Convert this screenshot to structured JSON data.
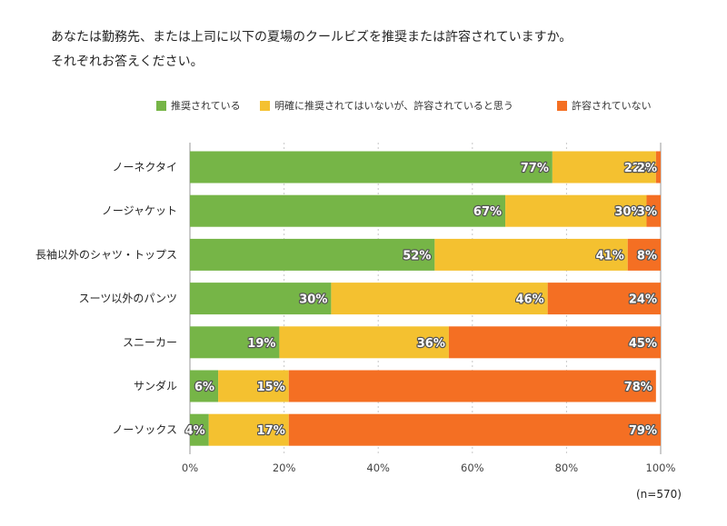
{
  "question": {
    "line1": "あなたは勤務先、または上司に以下の夏場のクールビズを推奨または許容されていますか。",
    "line2": "それぞれお答えください。"
  },
  "legend": [
    {
      "label": "推奨されている",
      "color": "#76B547"
    },
    {
      "label": "明確に推奨されてはいないが、許容されていると思う",
      "color": "#F4C130"
    },
    {
      "label": "許容されていない",
      "color": "#F46F23"
    }
  ],
  "chart_data": {
    "type": "bar",
    "orientation": "horizontal",
    "stacked": true,
    "categories": [
      "ノーネクタイ",
      "ノージャケット",
      "長袖以外のシャツ・トップス",
      "スーツ以外のパンツ",
      "スニーカー",
      "サンダル",
      "ノーソックス"
    ],
    "series": [
      {
        "name": "推奨されている",
        "values": [
          77,
          67,
          52,
          30,
          19,
          6,
          4
        ],
        "color": "#76B547"
      },
      {
        "name": "明確に推奨されてはいないが、許容されていると思う",
        "values": [
          22,
          30,
          41,
          46,
          36,
          15,
          17
        ],
        "color": "#F4C130"
      },
      {
        "name": "許容されていない",
        "values": [
          2,
          3,
          8,
          24,
          45,
          78,
          79
        ],
        "color": "#F46F23"
      }
    ],
    "xlim": [
      0,
      100
    ],
    "xticks": [
      "0%",
      "20%",
      "40%",
      "60%",
      "80%",
      "100%"
    ],
    "value_suffix": "%",
    "grid": true,
    "legend_position": "top"
  },
  "note": "(n=570)"
}
